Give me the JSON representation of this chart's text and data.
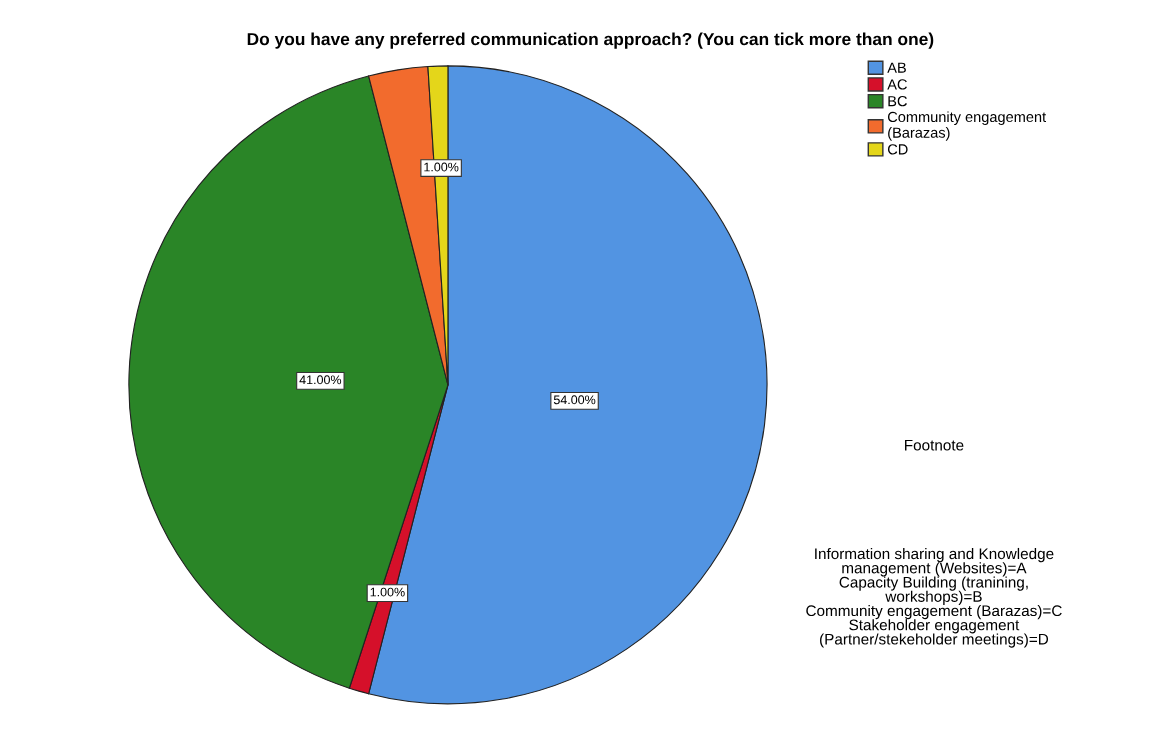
{
  "chart_data": {
    "type": "pie",
    "title": "Do you have any preferred communication approach? (You can tick more than one)",
    "categories": [
      "AB",
      "AC",
      "BC",
      "Community engagement\n(Barazas)",
      "CD"
    ],
    "values": [
      54,
      1,
      41,
      3,
      1
    ],
    "colors": [
      "#5294e2",
      "#d5102a",
      "#2a8527",
      "#f26b2d",
      "#e4d61a"
    ],
    "value_labels": [
      "54.00%",
      "1.00%",
      "41.00%",
      null,
      "1.00%"
    ],
    "legend": "top right",
    "annotations": [
      "Footnote",
      "Information sharing and Knowledge\nmanagement (Websites)=A\nCapacity Building (tranining,\nworkshops)=B\nCommunity engagement (Barazas)=C\nStakeholder engagement\n(Partner/stekeholder meetings)=D"
    ]
  }
}
